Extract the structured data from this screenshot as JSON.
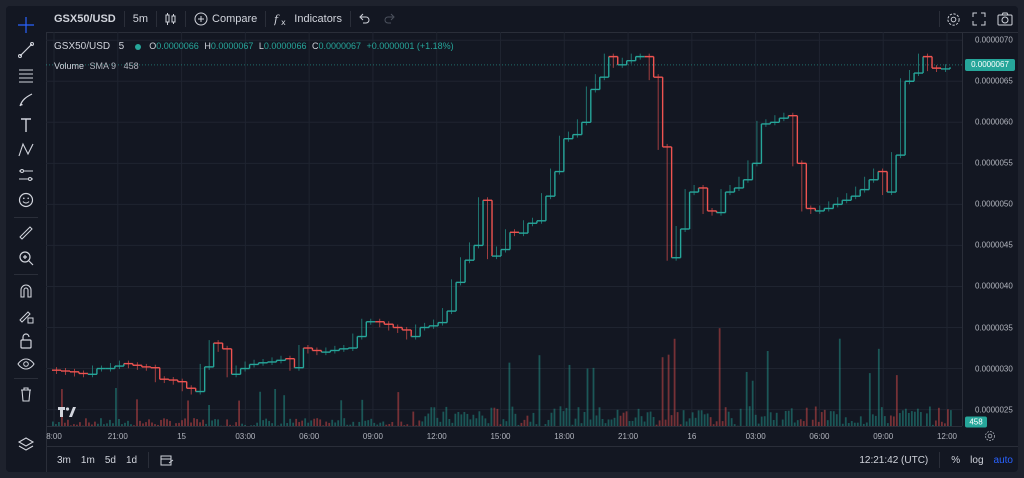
{
  "toolbar": {
    "symbol": "GSX50/USD",
    "interval": "5m",
    "compare_label": "Compare",
    "indicators_label": "Indicators",
    "icons": [
      "crosshair-icon",
      "candles-icon",
      "plus-circle-icon",
      "fx-icon",
      "undo-icon",
      "redo-icon",
      "settings-icon",
      "fullscreen-icon",
      "camera-icon"
    ]
  },
  "legend": {
    "symbol": "GSX50/USD",
    "interval": "5",
    "o_label": "O",
    "o_value": "0.0000066",
    "h_label": "H",
    "h_value": "0.0000067",
    "l_label": "L",
    "l_value": "0.0000066",
    "c_label": "C",
    "c_value": "0.0000067",
    "change": "+0.0000001 (+1.18%)",
    "volume_label": "Volume",
    "volume_sma": "SMA 9",
    "volume_value": "458"
  },
  "left_tools": [
    "crosshair-icon",
    "trend-line-icon",
    "fib-icon",
    "brush-icon",
    "text-icon",
    "pattern-icon",
    "prediction-icon",
    "emoji-icon",
    "ruler-icon",
    "zoom-in-icon",
    "magnet-icon",
    "lock-drawing-icon",
    "lock-icon",
    "eye-icon",
    "trash-icon",
    "layers-icon"
  ],
  "colors": {
    "background": "#131722",
    "up": "#26a69a",
    "down": "#ef5350",
    "grid": "#1f2430",
    "text": "#b2b5be",
    "accent": "#2962ff"
  },
  "price_axis": {
    "ticks": [
      "0.0000070",
      "0.0000065",
      "0.0000060",
      "0.0000055",
      "0.0000050",
      "0.0000045",
      "0.0000040",
      "0.0000035",
      "0.0000030",
      "0.0000025"
    ],
    "last_price": "0.0000067",
    "volume_badge": "458"
  },
  "time_axis": {
    "ticks": [
      "8:00",
      "21:00",
      "15",
      "03:00",
      "06:00",
      "09:00",
      "12:00",
      "15:00",
      "18:00",
      "21:00",
      "16",
      "03:00",
      "06:00",
      "09:00",
      "12:00"
    ]
  },
  "bottom": {
    "ranges": [
      "3m",
      "1m",
      "5d",
      "1d"
    ],
    "clock": "12:21:42 (UTC)",
    "percent": "%",
    "log": "log",
    "auto": "auto"
  },
  "chart_data": {
    "type": "line",
    "title": "",
    "xlabel": "",
    "ylabel": "",
    "ylim": [
      2.3e-06,
      7.1e-06
    ],
    "x": [
      0,
      0.01,
      0.02,
      0.03,
      0.04,
      0.05,
      0.06,
      0.07,
      0.08,
      0.09,
      0.1,
      0.11,
      0.12,
      0.13,
      0.14,
      0.15,
      0.16,
      0.17,
      0.18,
      0.19,
      0.2,
      0.21,
      0.22,
      0.23,
      0.24,
      0.25,
      0.26,
      0.27,
      0.28,
      0.29,
      0.3,
      0.31,
      0.32,
      0.33,
      0.34,
      0.35,
      0.36,
      0.37,
      0.38,
      0.39,
      0.4,
      0.41,
      0.42,
      0.43,
      0.44,
      0.45,
      0.46,
      0.47,
      0.48,
      0.49,
      0.5,
      0.51,
      0.52,
      0.53,
      0.54,
      0.55,
      0.56,
      0.57,
      0.58,
      0.59,
      0.6,
      0.61,
      0.62,
      0.63,
      0.64,
      0.65,
      0.66,
      0.67,
      0.68,
      0.69,
      0.7,
      0.71,
      0.72,
      0.73,
      0.74,
      0.75,
      0.76,
      0.77,
      0.78,
      0.79,
      0.8,
      0.81,
      0.82,
      0.83,
      0.84,
      0.85,
      0.86,
      0.87,
      0.88,
      0.89,
      0.9,
      0.91,
      0.92,
      0.93,
      0.94,
      0.95,
      0.96,
      0.97,
      0.98,
      0.99,
      1.0
    ],
    "series": [
      {
        "values": [
          2.98e-06,
          2.97e-06,
          2.96e-06,
          2.94e-06,
          2.93e-06,
          3e-06,
          3e-06,
          3.03e-06,
          3.06e-06,
          3.04e-06,
          3.02e-06,
          3.01e-06,
          2.87e-06,
          2.86e-06,
          2.84e-06,
          2.76e-06,
          2.72e-06,
          3.02e-06,
          3.31e-06,
          3.24e-06,
          2.93e-06,
          3e-06,
          3.05e-06,
          3.07e-06,
          3.08e-06,
          3.1e-06,
          3.12e-06,
          3.01e-06,
          3.25e-06,
          3.22e-06,
          3.2e-06,
          3.22e-06,
          3.24e-06,
          3.25e-06,
          3.39e-06,
          3.57e-06,
          3.57e-06,
          3.54e-06,
          3.5e-06,
          3.47e-06,
          3.39e-06,
          3.5e-06,
          3.52e-06,
          3.56e-06,
          3.7e-06,
          4.05e-06,
          4.32e-06,
          4.5e-06,
          5.05e-06,
          4.37e-06,
          4.45e-06,
          4.66e-06,
          4.65e-06,
          4.77e-06,
          4.8e-06,
          5.1e-06,
          5.4e-06,
          5.8e-06,
          5.85e-06,
          6e-06,
          6.4e-06,
          6.55e-06,
          6.8e-06,
          6.7e-06,
          6.75e-06,
          6.8e-06,
          6.8e-06,
          6.55e-06,
          5.7e-06,
          4.35e-06,
          4.7e-06,
          5.15e-06,
          5.2e-06,
          4.92e-06,
          4.9e-06,
          5.15e-06,
          5.2e-06,
          5.3e-06,
          5.5e-06,
          5.98e-06,
          6e-06,
          6.05e-06,
          6.08e-06,
          5.5e-06,
          4.95e-06,
          4.92e-06,
          4.95e-06,
          5e-06,
          5.05e-06,
          5.1e-06,
          5.18e-06,
          5.3e-06,
          5.4e-06,
          5.15e-06,
          5.6e-06,
          6.5e-06,
          6.6e-06,
          6.8e-06,
          6.66e-06,
          6.65e-06,
          6.67e-06
        ]
      }
    ]
  }
}
